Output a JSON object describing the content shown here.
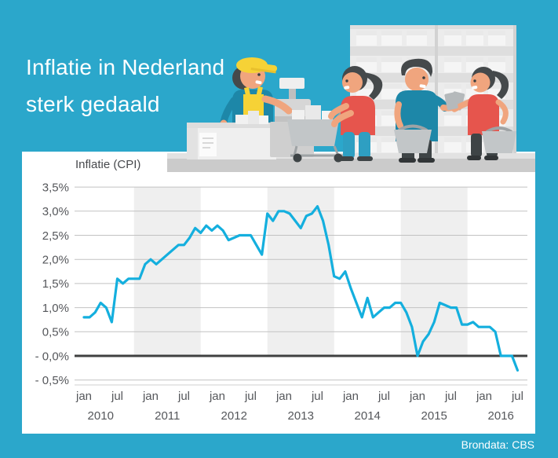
{
  "page": {
    "title_line1": "Inflatie in Nederland",
    "title_line2": "sterk gedaald",
    "source_label": "Brondata: CBS"
  },
  "chart": {
    "title": "Inflatie (CPI)",
    "y_tick_labels": [
      "3,5%",
      "3,0%",
      "2,5%",
      "2,0%",
      "1,5%",
      "1,0%",
      "0,5%",
      "- 0,0%",
      "- 0,5%"
    ],
    "y_tick_values": [
      3.5,
      3.0,
      2.5,
      2.0,
      1.5,
      1.0,
      0.5,
      0.0,
      -0.5
    ],
    "month_tick_labels": [
      "jan",
      "jul"
    ],
    "year_labels": [
      "2010",
      "2011",
      "2012",
      "2013",
      "2014",
      "2015",
      "2016"
    ],
    "shaded_years": [
      2011,
      2013,
      2015
    ]
  },
  "chart_data": {
    "type": "line",
    "title": "Inflatie (CPI)",
    "unit": "% (jaarmutatie CPI)",
    "x_start": "2010-01",
    "x_end": "2016-07",
    "x_tick_months": [
      "jan",
      "jul"
    ],
    "ylim": [
      -0.5,
      3.5
    ],
    "grid": true,
    "legend": "none",
    "series": [
      {
        "name": "Inflatie (CPI)",
        "color": "#14AFDE",
        "values_by_year": {
          "2010": [
            0.8,
            0.8,
            0.9,
            1.1,
            1.0,
            0.7,
            1.6,
            1.5,
            1.6,
            1.6,
            1.6,
            1.9
          ],
          "2011": [
            2.0,
            1.9,
            2.0,
            2.1,
            2.2,
            2.3,
            2.3,
            2.45,
            2.65,
            2.55,
            2.7,
            2.6
          ],
          "2012": [
            2.7,
            2.6,
            2.4,
            2.45,
            2.5,
            2.5,
            2.5,
            2.3,
            2.1,
            2.95,
            2.8,
            3.0
          ],
          "2013": [
            3.0,
            2.95,
            2.8,
            2.65,
            2.9,
            2.95,
            3.1,
            2.8,
            2.3,
            1.65,
            1.6,
            1.75
          ],
          "2014": [
            1.4,
            1.1,
            0.8,
            1.2,
            0.8,
            0.9,
            1.0,
            1.0,
            1.1,
            1.1,
            0.9,
            0.6
          ],
          "2015": [
            0.0,
            0.3,
            0.45,
            0.7,
            1.1,
            1.05,
            1.0,
            1.0,
            0.65,
            0.65,
            0.7,
            0.6
          ],
          "2016": [
            0.6,
            0.6,
            0.5,
            0.0,
            0.0,
            0.0,
            -0.3
          ]
        },
        "values": [
          0.8,
          0.8,
          0.9,
          1.1,
          1.0,
          0.7,
          1.6,
          1.5,
          1.6,
          1.6,
          1.6,
          1.9,
          2.0,
          1.9,
          2.0,
          2.1,
          2.2,
          2.3,
          2.3,
          2.45,
          2.65,
          2.55,
          2.7,
          2.6,
          2.7,
          2.6,
          2.4,
          2.45,
          2.5,
          2.5,
          2.5,
          2.3,
          2.1,
          2.95,
          2.8,
          3.0,
          3.0,
          2.95,
          2.8,
          2.65,
          2.9,
          2.95,
          3.1,
          2.8,
          2.3,
          1.65,
          1.6,
          1.75,
          1.4,
          1.1,
          0.8,
          1.2,
          0.8,
          0.9,
          1.0,
          1.0,
          1.1,
          1.1,
          0.9,
          0.6,
          0.0,
          0.3,
          0.45,
          0.7,
          1.1,
          1.05,
          1.0,
          1.0,
          0.65,
          0.65,
          0.7,
          0.6,
          0.6,
          0.6,
          0.5,
          0.0,
          0.0,
          0.0,
          -0.3
        ]
      }
    ],
    "source": "Brondata: CBS"
  },
  "colors": {
    "bg": "#2BA7CB",
    "white": "#FFFFFF",
    "line": "#14AFDE",
    "band": "#EFEFEF",
    "grid": "#C2C2C2",
    "zero-line": "#3F4040",
    "axis": "#CFCFCF",
    "text-dark": "#47494D",
    "text-axis": "#55575B",
    "skin": "#F0A57E",
    "hair": "#45494B",
    "yellow": "#F6D236",
    "yellow-dark": "#E8C02C",
    "red": "#E6554D",
    "teal-shirt": "#1D87A8",
    "teal-pants": "#2E9FC2",
    "dark-pants": "#3E4446",
    "shoe": "#313537",
    "shelf": "#DEDEDE",
    "shelf-light": "#ECECEC",
    "box": "#F5F5F5",
    "box-lid": "#E9E9E9",
    "floor-top": "#E2E2E2",
    "floor-face": "#CBCBCB",
    "prop-gray": "#C2C6C8",
    "prop-gray-dark": "#9EA3A5",
    "item-gray": "#B5B9BB",
    "counter": "#EFEFEF",
    "register": "#CFCFCF",
    "register-dark": "#BFBFBF",
    "paper": "#FBFBFB"
  },
  "illustration": {
    "scene": "supermarket-checkout",
    "elements": [
      "store-shelves",
      "store-floor",
      "cashier",
      "checkout-counter",
      "cash-register",
      "shopping-cart",
      "shopper-woman-cart",
      "shopper-man-basket",
      "shopper-woman-basket"
    ]
  }
}
